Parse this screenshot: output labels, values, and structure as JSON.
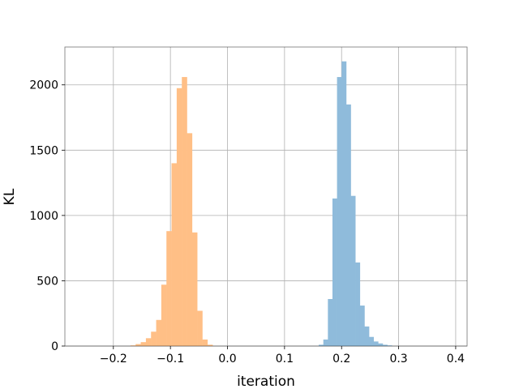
{
  "chart_data": {
    "type": "bar",
    "xlabel": "iteration",
    "ylabel": "KL",
    "xlim": [
      -0.285,
      0.42
    ],
    "ylim": [
      0,
      2290
    ],
    "xticks": [
      -0.2,
      -0.1,
      0.0,
      0.1,
      0.2,
      0.3,
      0.4
    ],
    "xtick_labels": [
      "−0.2",
      "−0.1",
      "0.0",
      "0.1",
      "0.2",
      "0.3",
      "0.4"
    ],
    "yticks": [
      0,
      500,
      1000,
      1500,
      2000
    ],
    "ytick_labels": [
      "0",
      "500",
      "1000",
      "1500",
      "2000"
    ],
    "grid": true,
    "series": [
      {
        "color": "#ffbf86",
        "bin_width": 0.0089,
        "bins": [
          {
            "x0": -0.17,
            "value": 5
          },
          {
            "x0": -0.161,
            "value": 15
          },
          {
            "x0": -0.152,
            "value": 30
          },
          {
            "x0": -0.143,
            "value": 60
          },
          {
            "x0": -0.134,
            "value": 110
          },
          {
            "x0": -0.125,
            "value": 200
          },
          {
            "x0": -0.116,
            "value": 470
          },
          {
            "x0": -0.107,
            "value": 880
          },
          {
            "x0": -0.098,
            "value": 1400
          },
          {
            "x0": -0.089,
            "value": 1975
          },
          {
            "x0": -0.08,
            "value": 2060
          },
          {
            "x0": -0.071,
            "value": 1630
          },
          {
            "x0": -0.062,
            "value": 870
          },
          {
            "x0": -0.053,
            "value": 270
          },
          {
            "x0": -0.044,
            "value": 50
          },
          {
            "x0": -0.035,
            "value": 10
          }
        ]
      },
      {
        "color": "#8fbbdb",
        "bin_width": 0.0081,
        "bins": [
          {
            "x0": 0.16,
            "value": 10
          },
          {
            "x0": 0.168,
            "value": 50
          },
          {
            "x0": 0.176,
            "value": 360
          },
          {
            "x0": 0.184,
            "value": 1130
          },
          {
            "x0": 0.192,
            "value": 2060
          },
          {
            "x0": 0.2,
            "value": 2180
          },
          {
            "x0": 0.208,
            "value": 1850
          },
          {
            "x0": 0.216,
            "value": 1150
          },
          {
            "x0": 0.224,
            "value": 640
          },
          {
            "x0": 0.232,
            "value": 310
          },
          {
            "x0": 0.24,
            "value": 150
          },
          {
            "x0": 0.248,
            "value": 70
          },
          {
            "x0": 0.256,
            "value": 35
          },
          {
            "x0": 0.264,
            "value": 20
          },
          {
            "x0": 0.272,
            "value": 10
          },
          {
            "x0": 0.28,
            "value": 5
          }
        ]
      }
    ]
  }
}
